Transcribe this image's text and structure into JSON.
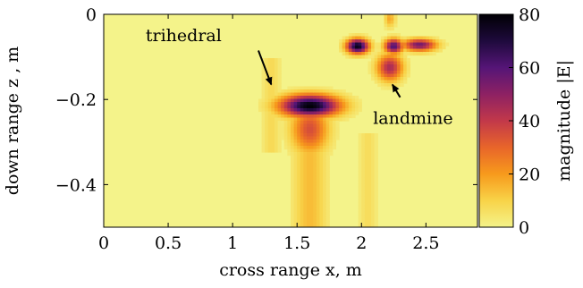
{
  "chart_data": {
    "type": "heatmap",
    "title": "",
    "xlabel": "cross range x, m",
    "ylabel": "down range z , m",
    "xlim": [
      0,
      2.9
    ],
    "ylim": [
      -0.5,
      0
    ],
    "xticks": [
      0,
      0.5,
      1,
      1.5,
      2,
      2.5
    ],
    "xtick_labels": [
      "0",
      "0.5",
      "1",
      "1.5",
      "2",
      "2.5"
    ],
    "yticks": [
      0,
      -0.2,
      -0.4
    ],
    "ytick_labels": [
      "0",
      "−0.2",
      "−0.4"
    ],
    "colorbar": {
      "label": "magnitude |E|",
      "min": 0,
      "max": 80,
      "ticks": [
        0,
        20,
        40,
        60,
        80
      ],
      "tick_labels": [
        "0",
        "20",
        "40",
        "60",
        "80"
      ],
      "colors": [
        "#f4f38a",
        "#f8d348",
        "#f79a1c",
        "#e8652a",
        "#c2384a",
        "#8d2163",
        "#551577",
        "#1e0a3c",
        "#000004"
      ]
    },
    "hotspots": [
      {
        "x": 1.6,
        "z": -0.215,
        "sx": 0.16,
        "sz": 0.018,
        "peak": 80
      },
      {
        "x": 1.6,
        "z": -0.27,
        "sx": 0.1,
        "sz": 0.04,
        "peak": 35
      },
      {
        "x": 1.97,
        "z": -0.075,
        "sx": 0.06,
        "sz": 0.012,
        "peak": 78
      },
      {
        "x": 2.25,
        "z": -0.075,
        "sx": 0.05,
        "sz": 0.012,
        "peak": 62
      },
      {
        "x": 2.45,
        "z": -0.072,
        "sx": 0.09,
        "sz": 0.01,
        "peak": 55
      },
      {
        "x": 2.22,
        "z": -0.125,
        "sx": 0.07,
        "sz": 0.022,
        "peak": 45
      },
      {
        "x": 2.22,
        "z": -0.01,
        "sx": 0.03,
        "sz": 0.015,
        "peak": 18
      }
    ],
    "annotations": [
      {
        "text": "trihedral",
        "text_x": 0.62,
        "text_z": -0.05,
        "arrow_from": [
          1.2,
          -0.085
        ],
        "arrow_to": [
          1.3,
          -0.165
        ]
      },
      {
        "text": "landmine",
        "text_x": 2.4,
        "text_z": -0.245,
        "arrow_from": [
          2.3,
          -0.195
        ],
        "arrow_to": [
          2.24,
          -0.165
        ]
      }
    ]
  }
}
